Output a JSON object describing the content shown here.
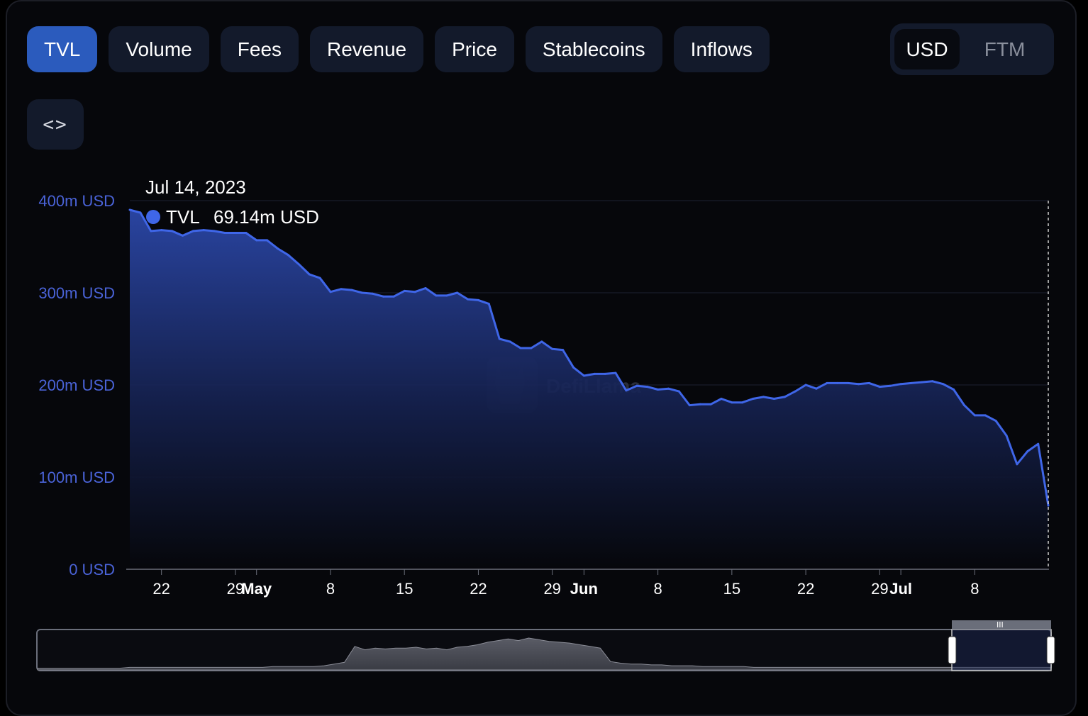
{
  "tabs": [
    {
      "label": "TVL",
      "active": true
    },
    {
      "label": "Volume",
      "active": false
    },
    {
      "label": "Fees",
      "active": false
    },
    {
      "label": "Revenue",
      "active": false
    },
    {
      "label": "Price",
      "active": false
    },
    {
      "label": "Stablecoins",
      "active": false
    },
    {
      "label": "Inflows",
      "active": false
    }
  ],
  "currency_toggle": {
    "selected": "USD",
    "other": "FTM"
  },
  "embed_button": {
    "icon": "code-brackets-icon",
    "label": "<>"
  },
  "watermark": "DefiLlama",
  "tooltip": {
    "date": "Jul 14, 2023",
    "series_name": "TVL",
    "value": "69.14m USD"
  },
  "colors": {
    "line": "#3f66e8",
    "area_top": "#2b47a8",
    "active_tab": "#2b5bbd",
    "axis_label": "#4a63d8"
  },
  "chart_data": {
    "type": "area",
    "series_name": "TVL",
    "y_unit": "USD",
    "ylim": [
      0,
      400000000
    ],
    "y_ticks": [
      {
        "value": 0,
        "label": "0 USD"
      },
      {
        "value": 100000000,
        "label": "100m USD"
      },
      {
        "value": 200000000,
        "label": "200m USD"
      },
      {
        "value": 300000000,
        "label": "300m USD"
      },
      {
        "value": 400000000,
        "label": "400m USD"
      }
    ],
    "xlim": [
      "2023-04-19",
      "2023-07-14"
    ],
    "x_ticks": [
      {
        "date": "2023-04-22",
        "label": "22",
        "bold": false
      },
      {
        "date": "2023-04-29",
        "label": "29",
        "bold": false
      },
      {
        "date": "2023-05-01",
        "label": "May",
        "bold": true
      },
      {
        "date": "2023-05-08",
        "label": "8",
        "bold": false
      },
      {
        "date": "2023-05-15",
        "label": "15",
        "bold": false
      },
      {
        "date": "2023-05-22",
        "label": "22",
        "bold": false
      },
      {
        "date": "2023-05-29",
        "label": "29",
        "bold": false
      },
      {
        "date": "2023-06-01",
        "label": "Jun",
        "bold": true
      },
      {
        "date": "2023-06-08",
        "label": "8",
        "bold": false
      },
      {
        "date": "2023-06-15",
        "label": "15",
        "bold": false
      },
      {
        "date": "2023-06-22",
        "label": "22",
        "bold": false
      },
      {
        "date": "2023-06-29",
        "label": "29",
        "bold": false
      },
      {
        "date": "2023-07-01",
        "label": "Jul",
        "bold": true
      },
      {
        "date": "2023-07-08",
        "label": "8",
        "bold": false
      }
    ],
    "grid": true,
    "legend": "none",
    "points": [
      [
        "2023-04-19",
        390
      ],
      [
        "2023-04-20",
        387
      ],
      [
        "2023-04-21",
        367
      ],
      [
        "2023-04-22",
        368
      ],
      [
        "2023-04-23",
        367
      ],
      [
        "2023-04-24",
        362
      ],
      [
        "2023-04-25",
        367
      ],
      [
        "2023-04-26",
        368
      ],
      [
        "2023-04-27",
        367
      ],
      [
        "2023-04-28",
        365
      ],
      [
        "2023-04-29",
        365
      ],
      [
        "2023-04-30",
        365
      ],
      [
        "2023-05-01",
        357
      ],
      [
        "2023-05-02",
        357
      ],
      [
        "2023-05-03",
        348
      ],
      [
        "2023-05-04",
        341
      ],
      [
        "2023-05-05",
        331
      ],
      [
        "2023-05-06",
        320
      ],
      [
        "2023-05-07",
        316
      ],
      [
        "2023-05-08",
        301
      ],
      [
        "2023-05-09",
        304
      ],
      [
        "2023-05-10",
        303
      ],
      [
        "2023-05-11",
        300
      ],
      [
        "2023-05-12",
        299
      ],
      [
        "2023-05-13",
        296
      ],
      [
        "2023-05-14",
        296
      ],
      [
        "2023-05-15",
        302
      ],
      [
        "2023-05-16",
        301
      ],
      [
        "2023-05-17",
        305
      ],
      [
        "2023-05-18",
        297
      ],
      [
        "2023-05-19",
        297
      ],
      [
        "2023-05-20",
        300
      ],
      [
        "2023-05-21",
        293
      ],
      [
        "2023-05-22",
        292
      ],
      [
        "2023-05-23",
        288
      ],
      [
        "2023-05-24",
        250
      ],
      [
        "2023-05-25",
        247
      ],
      [
        "2023-05-26",
        240
      ],
      [
        "2023-05-27",
        240
      ],
      [
        "2023-05-28",
        247
      ],
      [
        "2023-05-29",
        239
      ],
      [
        "2023-05-30",
        238
      ],
      [
        "2023-05-31",
        219
      ],
      [
        "2023-06-01",
        210
      ],
      [
        "2023-06-02",
        212
      ],
      [
        "2023-06-03",
        212
      ],
      [
        "2023-06-04",
        213
      ],
      [
        "2023-06-05",
        194
      ],
      [
        "2023-06-06",
        199
      ],
      [
        "2023-06-07",
        198
      ],
      [
        "2023-06-08",
        195
      ],
      [
        "2023-06-09",
        196
      ],
      [
        "2023-06-10",
        193
      ],
      [
        "2023-06-11",
        178
      ],
      [
        "2023-06-12",
        179
      ],
      [
        "2023-06-13",
        179
      ],
      [
        "2023-06-14",
        185
      ],
      [
        "2023-06-15",
        181
      ],
      [
        "2023-06-16",
        181
      ],
      [
        "2023-06-17",
        185
      ],
      [
        "2023-06-18",
        187
      ],
      [
        "2023-06-19",
        185
      ],
      [
        "2023-06-20",
        187
      ],
      [
        "2023-06-21",
        193
      ],
      [
        "2023-06-22",
        200
      ],
      [
        "2023-06-23",
        196
      ],
      [
        "2023-06-24",
        202
      ],
      [
        "2023-06-25",
        202
      ],
      [
        "2023-06-26",
        202
      ],
      [
        "2023-06-27",
        201
      ],
      [
        "2023-06-28",
        202
      ],
      [
        "2023-06-29",
        198
      ],
      [
        "2023-06-30",
        199
      ],
      [
        "2023-07-01",
        201
      ],
      [
        "2023-07-02",
        202
      ],
      [
        "2023-07-03",
        203
      ],
      [
        "2023-07-04",
        204
      ],
      [
        "2023-07-05",
        201
      ],
      [
        "2023-07-06",
        195
      ],
      [
        "2023-07-07",
        178
      ],
      [
        "2023-07-08",
        167
      ],
      [
        "2023-07-09",
        167
      ],
      [
        "2023-07-10",
        161
      ],
      [
        "2023-07-11",
        145
      ],
      [
        "2023-07-12",
        114
      ],
      [
        "2023-07-13",
        128
      ],
      [
        "2023-07-14",
        136
      ],
      [
        "2023-07-14T23",
        69.14
      ]
    ],
    "points_unit": "millions USD",
    "highlight_date": "2023-07-14"
  },
  "overview": {
    "profile": [
      2,
      2,
      2,
      2,
      2,
      2,
      2,
      2,
      2,
      3,
      3,
      3,
      3,
      3,
      3,
      3,
      3,
      3,
      3,
      3,
      3,
      3,
      3,
      4,
      4,
      4,
      4,
      4,
      5,
      7,
      9,
      28,
      24,
      26,
      25,
      26,
      26,
      27,
      25,
      26,
      24,
      27,
      28,
      30,
      33,
      35,
      37,
      35,
      38,
      36,
      34,
      33,
      32,
      30,
      28,
      26,
      10,
      8,
      7,
      7,
      6,
      6,
      5,
      5,
      5,
      4,
      4,
      4,
      4,
      4,
      3,
      3,
      3,
      3,
      3,
      3,
      3,
      3,
      3,
      3,
      3,
      3,
      3,
      3,
      3,
      3,
      3,
      3,
      3,
      3,
      3,
      3,
      3,
      3,
      3,
      3,
      3,
      3,
      3,
      3
    ],
    "handle_icon": "grip-lines-icon"
  }
}
